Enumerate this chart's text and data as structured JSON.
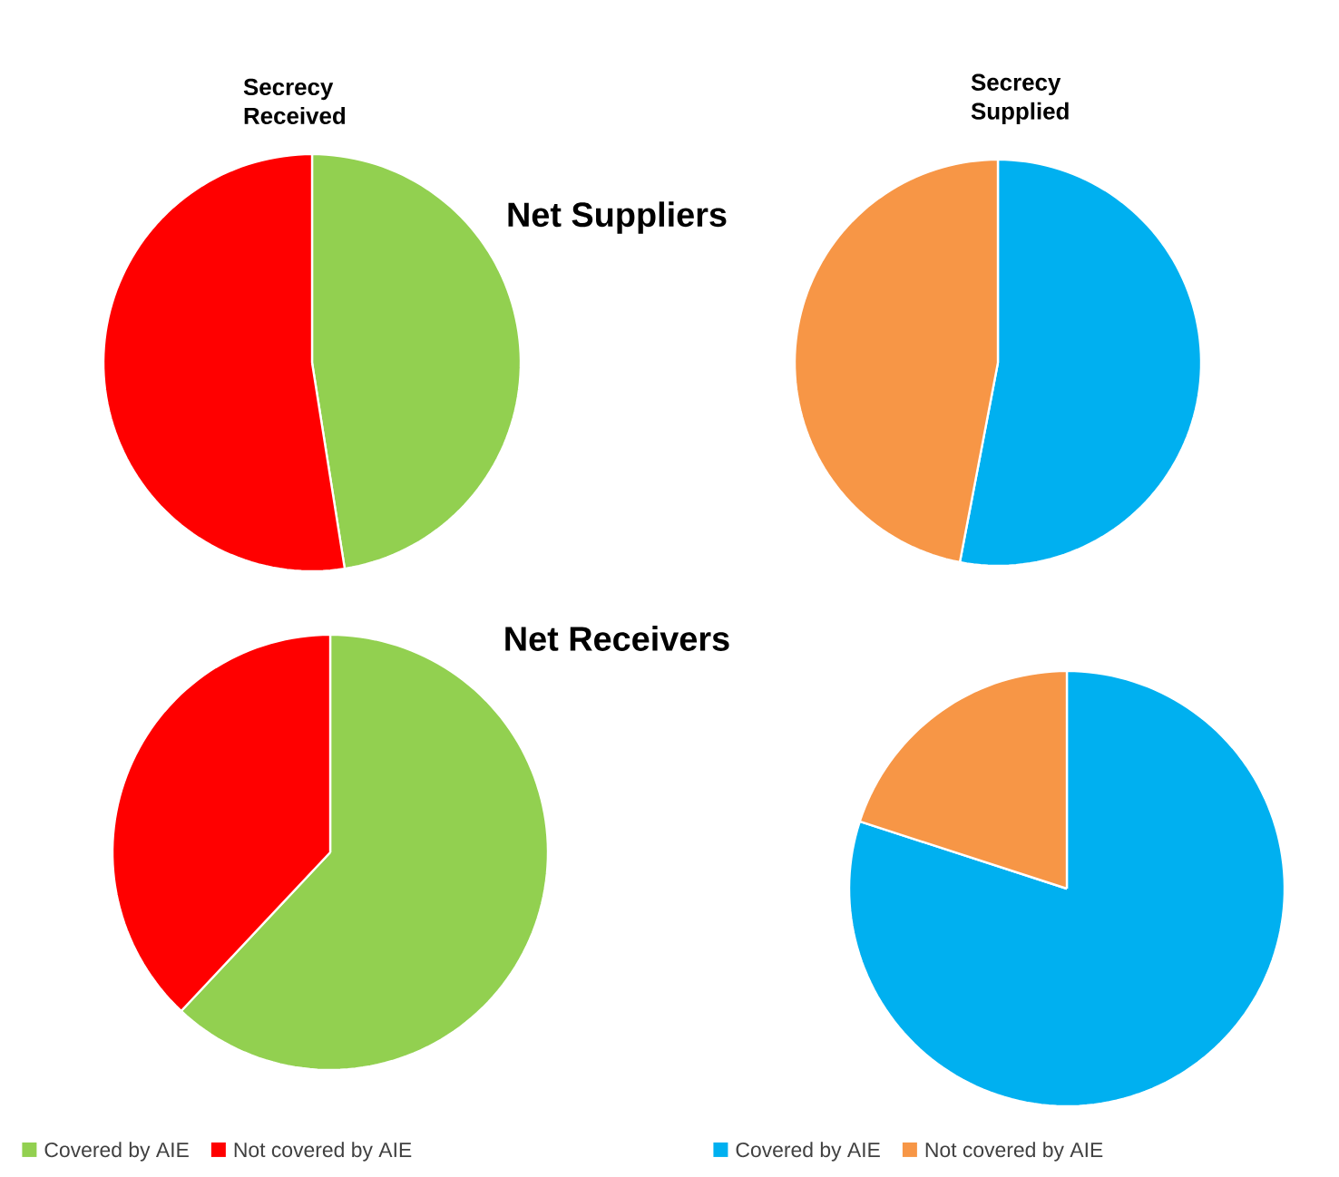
{
  "chart_data": [
    {
      "type": "pie",
      "title": "Secrecy Received",
      "categories": [
        "Covered by AIE",
        "Not covered by AIE"
      ],
      "colors": [
        "#92d050",
        "#ff0000"
      ],
      "legend": "bottom",
      "series": [
        {
          "name": "Net Suppliers",
          "values": [
            47.5,
            52.5
          ]
        },
        {
          "name": "Net Receivers",
          "values": [
            62,
            38
          ]
        }
      ]
    },
    {
      "type": "pie",
      "title": "Secrecy Supplied",
      "categories": [
        "Covered by AIE",
        "Not covered by AIE"
      ],
      "colors": [
        "#00b0f0",
        "#f79646"
      ],
      "legend": "bottom",
      "series": [
        {
          "values": [
            53,
            47
          ]
        },
        {
          "values": [
            80,
            20
          ]
        }
      ]
    }
  ]
}
